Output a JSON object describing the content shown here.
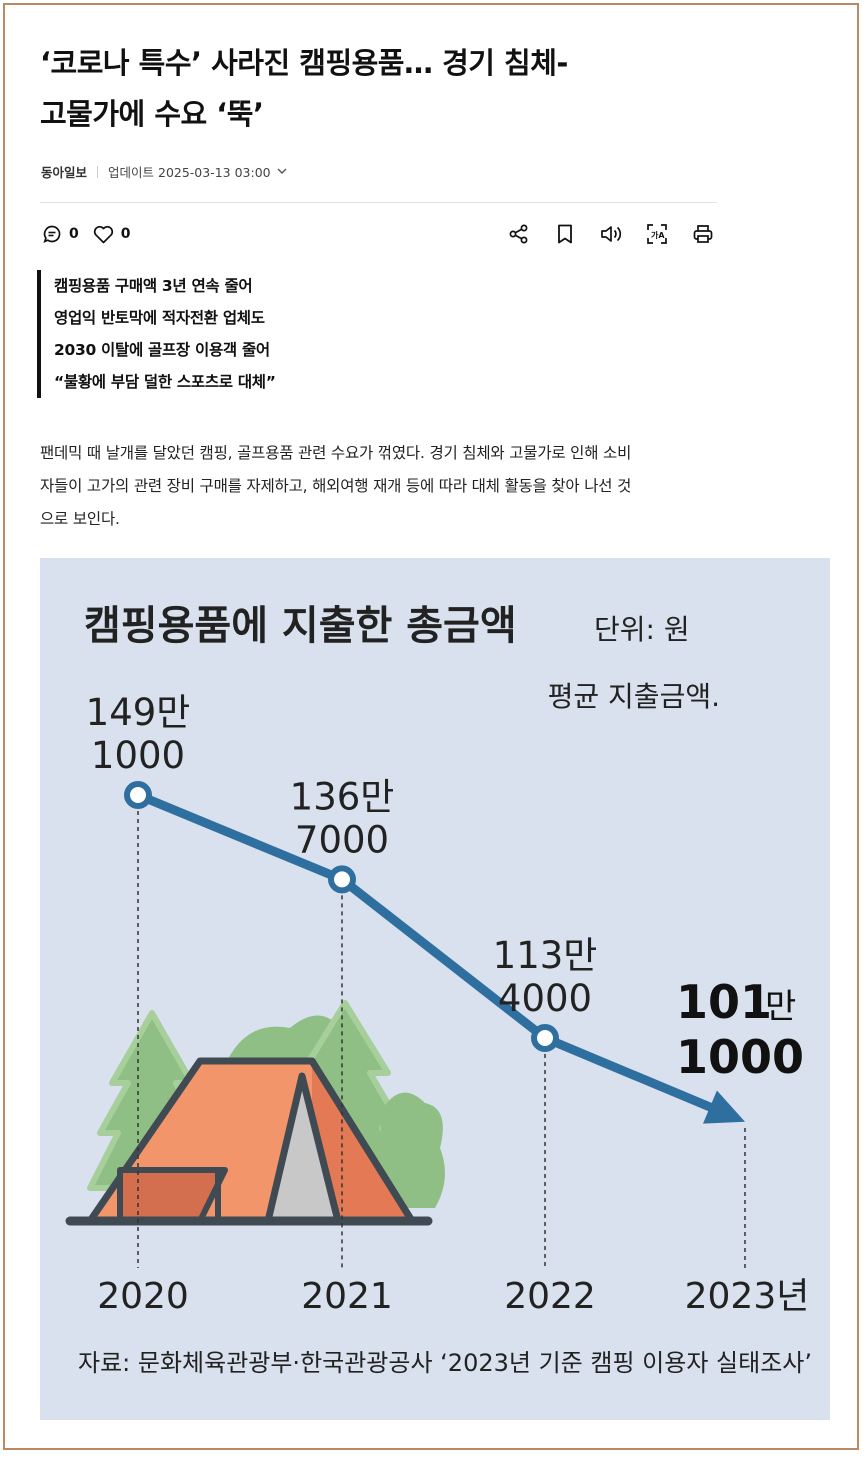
{
  "article": {
    "headline_line1": "‘코로나 특수’ 사라진 캠핑용품… 경기 침체-",
    "headline_line2": "고물가에 수요 ‘뚝’",
    "press": "동아일보",
    "updated": "업데이트 2025-03-13 03:00",
    "comment_count": "0",
    "like_count": "0",
    "summary": [
      "캠핑용품 구매액 3년 연속 줄어",
      "영업익 반토막에 적자전환 업체도",
      "2030 이탈에 골프장 이용객 줄어",
      "“불황에 부담 덜한 스포츠로 대체”"
    ],
    "body_lines": [
      "팬데믹 때 날개를 달았던 캠핑, 골프용품 관련 수요가 꺾였다. 경기 침체와 고물가로 인해 소비",
      "자들이 고가의 관련 장비 구매를 자제하고, 해외여행 재개 등에 따라 대체 활동을 찾아 나선 것",
      "으로 보인다."
    ]
  },
  "icons": {
    "comment": "comment-icon",
    "like": "heart-icon",
    "share": "share-icon",
    "bookmark": "bookmark-icon",
    "audio": "speaker-icon",
    "translate": "translate-icon",
    "print": "print-icon",
    "expand": "chevron-down-icon"
  },
  "colors": {
    "frame": "#b98a63",
    "chart_bg": "#d8e1ed",
    "line": "#2f6f9f",
    "tent_roof": "#f3956a",
    "tent_dark": "#e47a55",
    "tent_inner": "#c8c8c8",
    "tree": "#8fbf84",
    "outline": "#3f4a52"
  },
  "chart_data": {
    "type": "line",
    "title": "캠핑용품에 지출한 총금액",
    "unit": "단위: 원",
    "legend": "평균 지출금액.",
    "categories": [
      "2020",
      "2021",
      "2022",
      "2023년"
    ],
    "series": [
      {
        "values": [
          1491000,
          1367000,
          1134000,
          1011000
        ],
        "labels": [
          [
            "149만",
            "1000"
          ],
          [
            "136만",
            "7000"
          ],
          [
            "113만",
            "4000"
          ],
          [
            "101",
            "만",
            "1000"
          ]
        ]
      }
    ],
    "source": "자료: 문화체육관광부·한국관광공사 ‘2023년 기준 캠핑 이용자 실태조사’"
  }
}
